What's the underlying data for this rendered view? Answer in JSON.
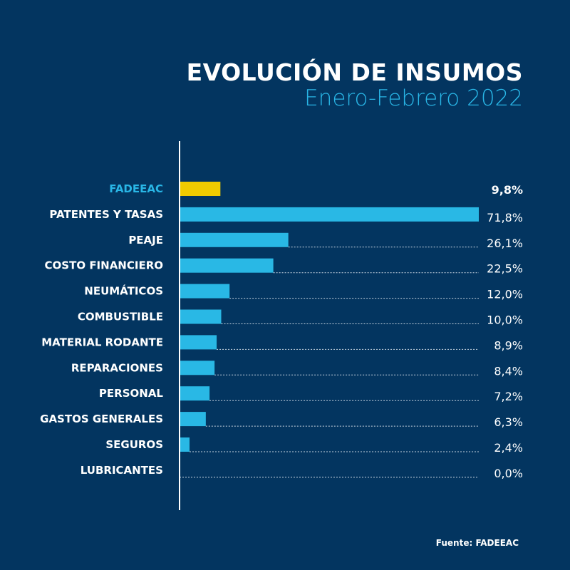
{
  "chart_data": {
    "type": "bar",
    "orientation": "horizontal",
    "title": "EVOLUCIÓN DE INSUMOS",
    "subtitle": "Enero-Febrero 2022",
    "categories": [
      "FADEEAC",
      "PATENTES Y TASAS",
      "PEAJE",
      "COSTO FINANCIERO",
      "NEUMÁTICOS",
      "COMBUSTIBLE",
      "MATERIAL RODANTE",
      "REPARACIONES",
      "PERSONAL",
      "GASTOS GENERALES",
      "SEGUROS",
      "LUBRICANTES"
    ],
    "values": [
      9.8,
      71.8,
      26.1,
      22.5,
      12.0,
      10.0,
      8.9,
      8.4,
      7.2,
      6.3,
      2.4,
      0.0
    ],
    "value_labels": [
      "9,8%",
      "71,8%",
      "26,1%",
      "22,5%",
      "12,0%",
      "10,0%",
      "8,9%",
      "8,4%",
      "7,2%",
      "6,3%",
      "2,4%",
      "0,0%"
    ],
    "highlight_category": "FADEEAC",
    "colors": {
      "background": "#033560",
      "bar": "#29b8e5",
      "highlight_bar": "#f0cb00",
      "highlight_label": "#29b6e6",
      "text": "#ffffff"
    },
    "grid": false,
    "source": "Fuente: FADEEAC"
  }
}
